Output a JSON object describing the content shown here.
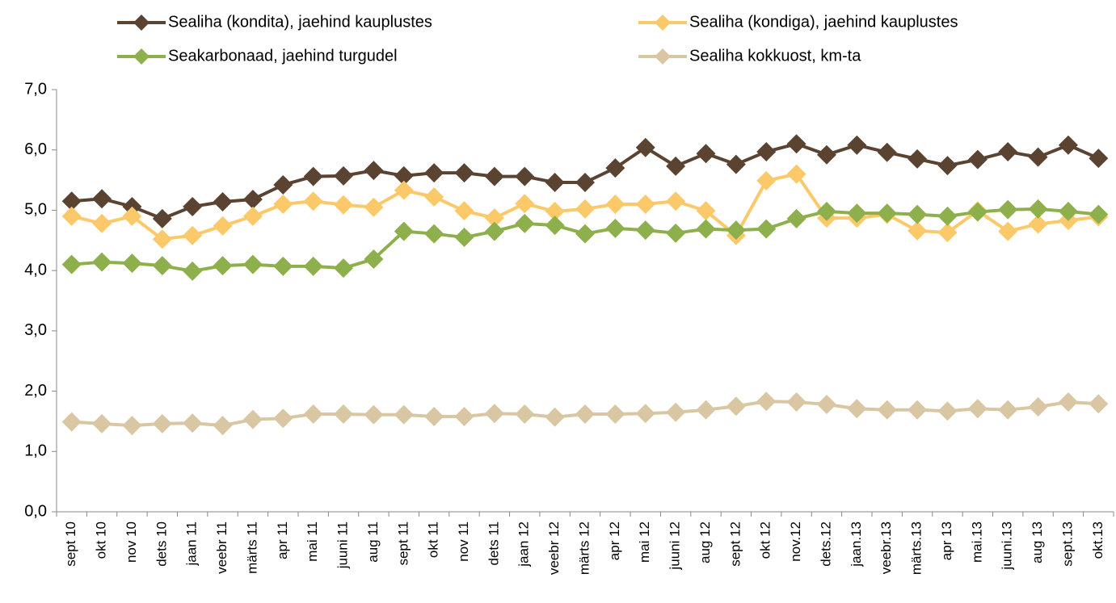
{
  "chart_data": {
    "type": "line",
    "categories": [
      "sept 10",
      "okt 10",
      "nov 10",
      "dets 10",
      "jaan 11",
      "veebr 11",
      "märts 11",
      "apr 11",
      "mai 11",
      "juuni 11",
      "aug 11",
      "sept 11",
      "okt 11",
      "nov 11",
      "dets 11",
      "jaan 12",
      "veebr 12",
      "märts 12",
      "apr 12",
      "mai 12",
      "juuni 12",
      "aug 12",
      "sept 12",
      "okt 12",
      "nov.12",
      "dets.12",
      "jaan.13",
      "veebr.13",
      "märts.13",
      "apr 13",
      "mai.13",
      "juuni.13",
      "aug 13",
      "sept.13",
      "okt.13"
    ],
    "series": [
      {
        "name": "Sealiha (kondita), jaehind kauplustes",
        "color": "#5b4332",
        "values": [
          5.15,
          5.19,
          5.06,
          4.86,
          5.06,
          5.14,
          5.18,
          5.42,
          5.56,
          5.57,
          5.66,
          5.57,
          5.62,
          5.62,
          5.56,
          5.56,
          5.46,
          5.46,
          5.7,
          6.04,
          5.73,
          5.94,
          5.76,
          5.97,
          6.1,
          5.92,
          6.08,
          5.96,
          5.85,
          5.74,
          5.84,
          5.97,
          5.88,
          6.08,
          5.86
        ]
      },
      {
        "name": "Sealiha (kondiga), jaehind kauplustes",
        "color": "#fcc96a",
        "values": [
          4.9,
          4.78,
          4.9,
          4.52,
          4.58,
          4.74,
          4.9,
          5.1,
          5.15,
          5.09,
          5.05,
          5.33,
          5.22,
          4.99,
          4.87,
          5.11,
          4.98,
          5.02,
          5.1,
          5.1,
          5.15,
          4.99,
          4.58,
          5.49,
          5.6,
          4.87,
          4.87,
          4.93,
          4.66,
          4.63,
          4.99,
          4.65,
          4.77,
          4.83,
          4.89
        ]
      },
      {
        "name": "Seakarbonaad, jaehind turgudel",
        "color": "#8db04c",
        "values": [
          4.1,
          4.14,
          4.12,
          4.08,
          3.99,
          4.08,
          4.1,
          4.07,
          4.07,
          4.04,
          4.19,
          4.65,
          4.61,
          4.55,
          4.65,
          4.78,
          4.75,
          4.61,
          4.7,
          4.67,
          4.62,
          4.69,
          4.67,
          4.69,
          4.86,
          4.98,
          4.95,
          4.95,
          4.93,
          4.9,
          4.97,
          5.01,
          5.02,
          4.98,
          4.93
        ]
      },
      {
        "name": "Sealiha kokkuost, km-ta",
        "color": "#d9c7a3",
        "values": [
          1.49,
          1.46,
          1.43,
          1.46,
          1.47,
          1.43,
          1.53,
          1.55,
          1.62,
          1.62,
          1.61,
          1.61,
          1.58,
          1.58,
          1.63,
          1.62,
          1.57,
          1.62,
          1.62,
          1.63,
          1.65,
          1.69,
          1.75,
          1.83,
          1.82,
          1.78,
          1.71,
          1.69,
          1.69,
          1.67,
          1.71,
          1.69,
          1.74,
          1.82,
          1.79
        ]
      }
    ],
    "ylim": [
      0,
      7
    ],
    "yticks": [
      {
        "value": 0,
        "label": "0,0"
      },
      {
        "value": 1,
        "label": "1,0"
      },
      {
        "value": 2,
        "label": "2,0"
      },
      {
        "value": 3,
        "label": "3,0"
      },
      {
        "value": 4,
        "label": "4,0"
      },
      {
        "value": 5,
        "label": "5,0"
      },
      {
        "value": 6,
        "label": "6,0"
      },
      {
        "value": 7,
        "label": "7,0"
      }
    ],
    "grid": false,
    "legend": "top"
  }
}
